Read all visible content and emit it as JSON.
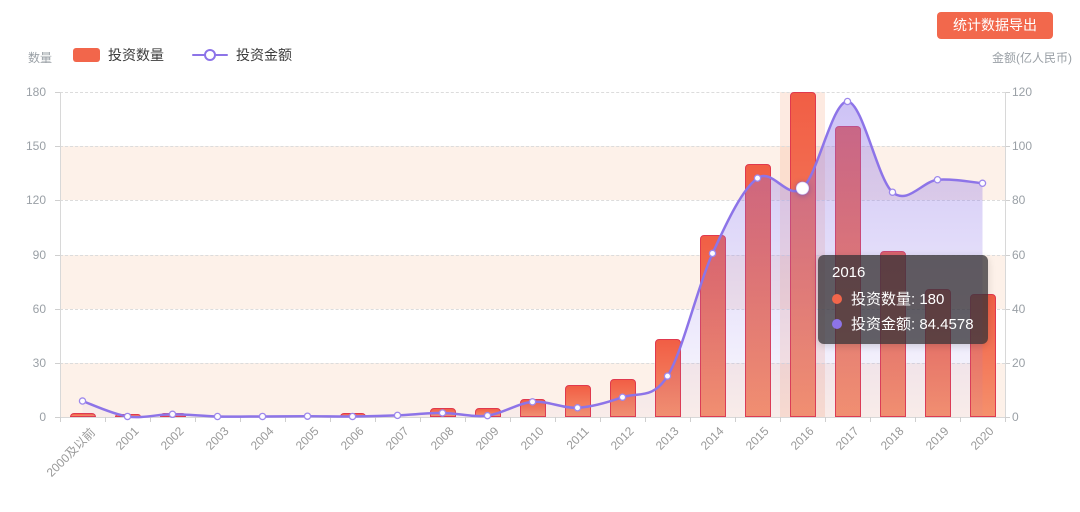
{
  "export_button": {
    "label": "统计数据导出"
  },
  "left_axis_name": "数量",
  "right_axis_name": "金额(亿人民币)",
  "legend": [
    {
      "label": "投资数量",
      "type": "bar",
      "color": "#f2664b"
    },
    {
      "label": "投资金额",
      "type": "line",
      "color": "#8d74e8"
    }
  ],
  "tooltip": {
    "title": "2016",
    "rows": [
      {
        "text": "投资数量: 180",
        "color": "#f2664b"
      },
      {
        "text": "投资金额: 84.4578",
        "color": "#8d74e8"
      }
    ]
  },
  "chart_data": {
    "type": "bar",
    "subtype": "bar+line dual-axis combo",
    "categories": [
      "2000及以前",
      "2001",
      "2002",
      "2003",
      "2004",
      "2005",
      "2006",
      "2007",
      "2008",
      "2009",
      "2010",
      "2011",
      "2012",
      "2013",
      "2014",
      "2015",
      "2016",
      "2017",
      "2018",
      "2019",
      "2020"
    ],
    "series": [
      {
        "name": "投资数量",
        "type": "bar",
        "axis": "left",
        "color": "#f2664b",
        "values": [
          2,
          1,
          2,
          0,
          0,
          0,
          2,
          0,
          5,
          5,
          10,
          18,
          21,
          43,
          101,
          140,
          180,
          161,
          92,
          71,
          68
        ]
      },
      {
        "name": "投资金额",
        "type": "line",
        "axis": "right",
        "color": "#8d74e8",
        "smooth": true,
        "area": true,
        "values": [
          5.9,
          0.2,
          1.0,
          0.15,
          0.2,
          0.3,
          0.2,
          0.6,
          1.5,
          0.5,
          5.6,
          3.4,
          7.3,
          15.1,
          60.4,
          88.2,
          84.4578,
          116.5,
          83.0,
          87.6,
          86.3
        ]
      }
    ],
    "left_axis": {
      "name": "数量",
      "min": 0,
      "max": 180,
      "ticks": [
        0,
        30,
        60,
        90,
        120,
        150,
        180
      ]
    },
    "right_axis": {
      "name": "金额(亿人民币)",
      "min": 0,
      "max": 120,
      "ticks": [
        0,
        20,
        40,
        60,
        80,
        100,
        120
      ]
    },
    "highlight_index": 16,
    "grid": "horizontal dashed",
    "legend_position": "top-left",
    "split_area_colors": [
      "#fdf1e9",
      "#ffffff"
    ],
    "highlight_band_color": "rgba(245,140,90,0.18)"
  }
}
